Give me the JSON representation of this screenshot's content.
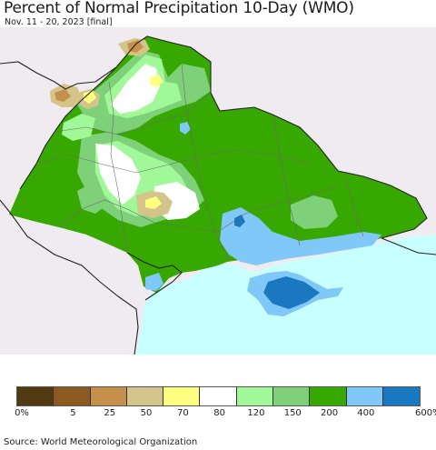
{
  "header": {
    "title": "Percent of Normal Precipitation 10-Day (WMO)",
    "subtitle": "Nov. 11 - 20, 2023 [final]"
  },
  "legend": {
    "colors": [
      "#523a12",
      "#8c5a20",
      "#c4904c",
      "#d4c48a",
      "#ffff80",
      "#ffffff",
      "#a0f898",
      "#7ed079",
      "#37a800",
      "#80c8f8",
      "#1a78c0"
    ],
    "labels": [
      "0%",
      "5",
      "25",
      "50",
      "70",
      "80",
      "120",
      "150",
      "200",
      "400",
      "600%"
    ]
  },
  "map_colors": {
    "background": "#f0ebf0",
    "sea": "#c8ffff",
    "border": "#222222",
    "admin": "#6a6a6a"
  },
  "footer": {
    "source": "Source: World Meteorological Organization"
  }
}
